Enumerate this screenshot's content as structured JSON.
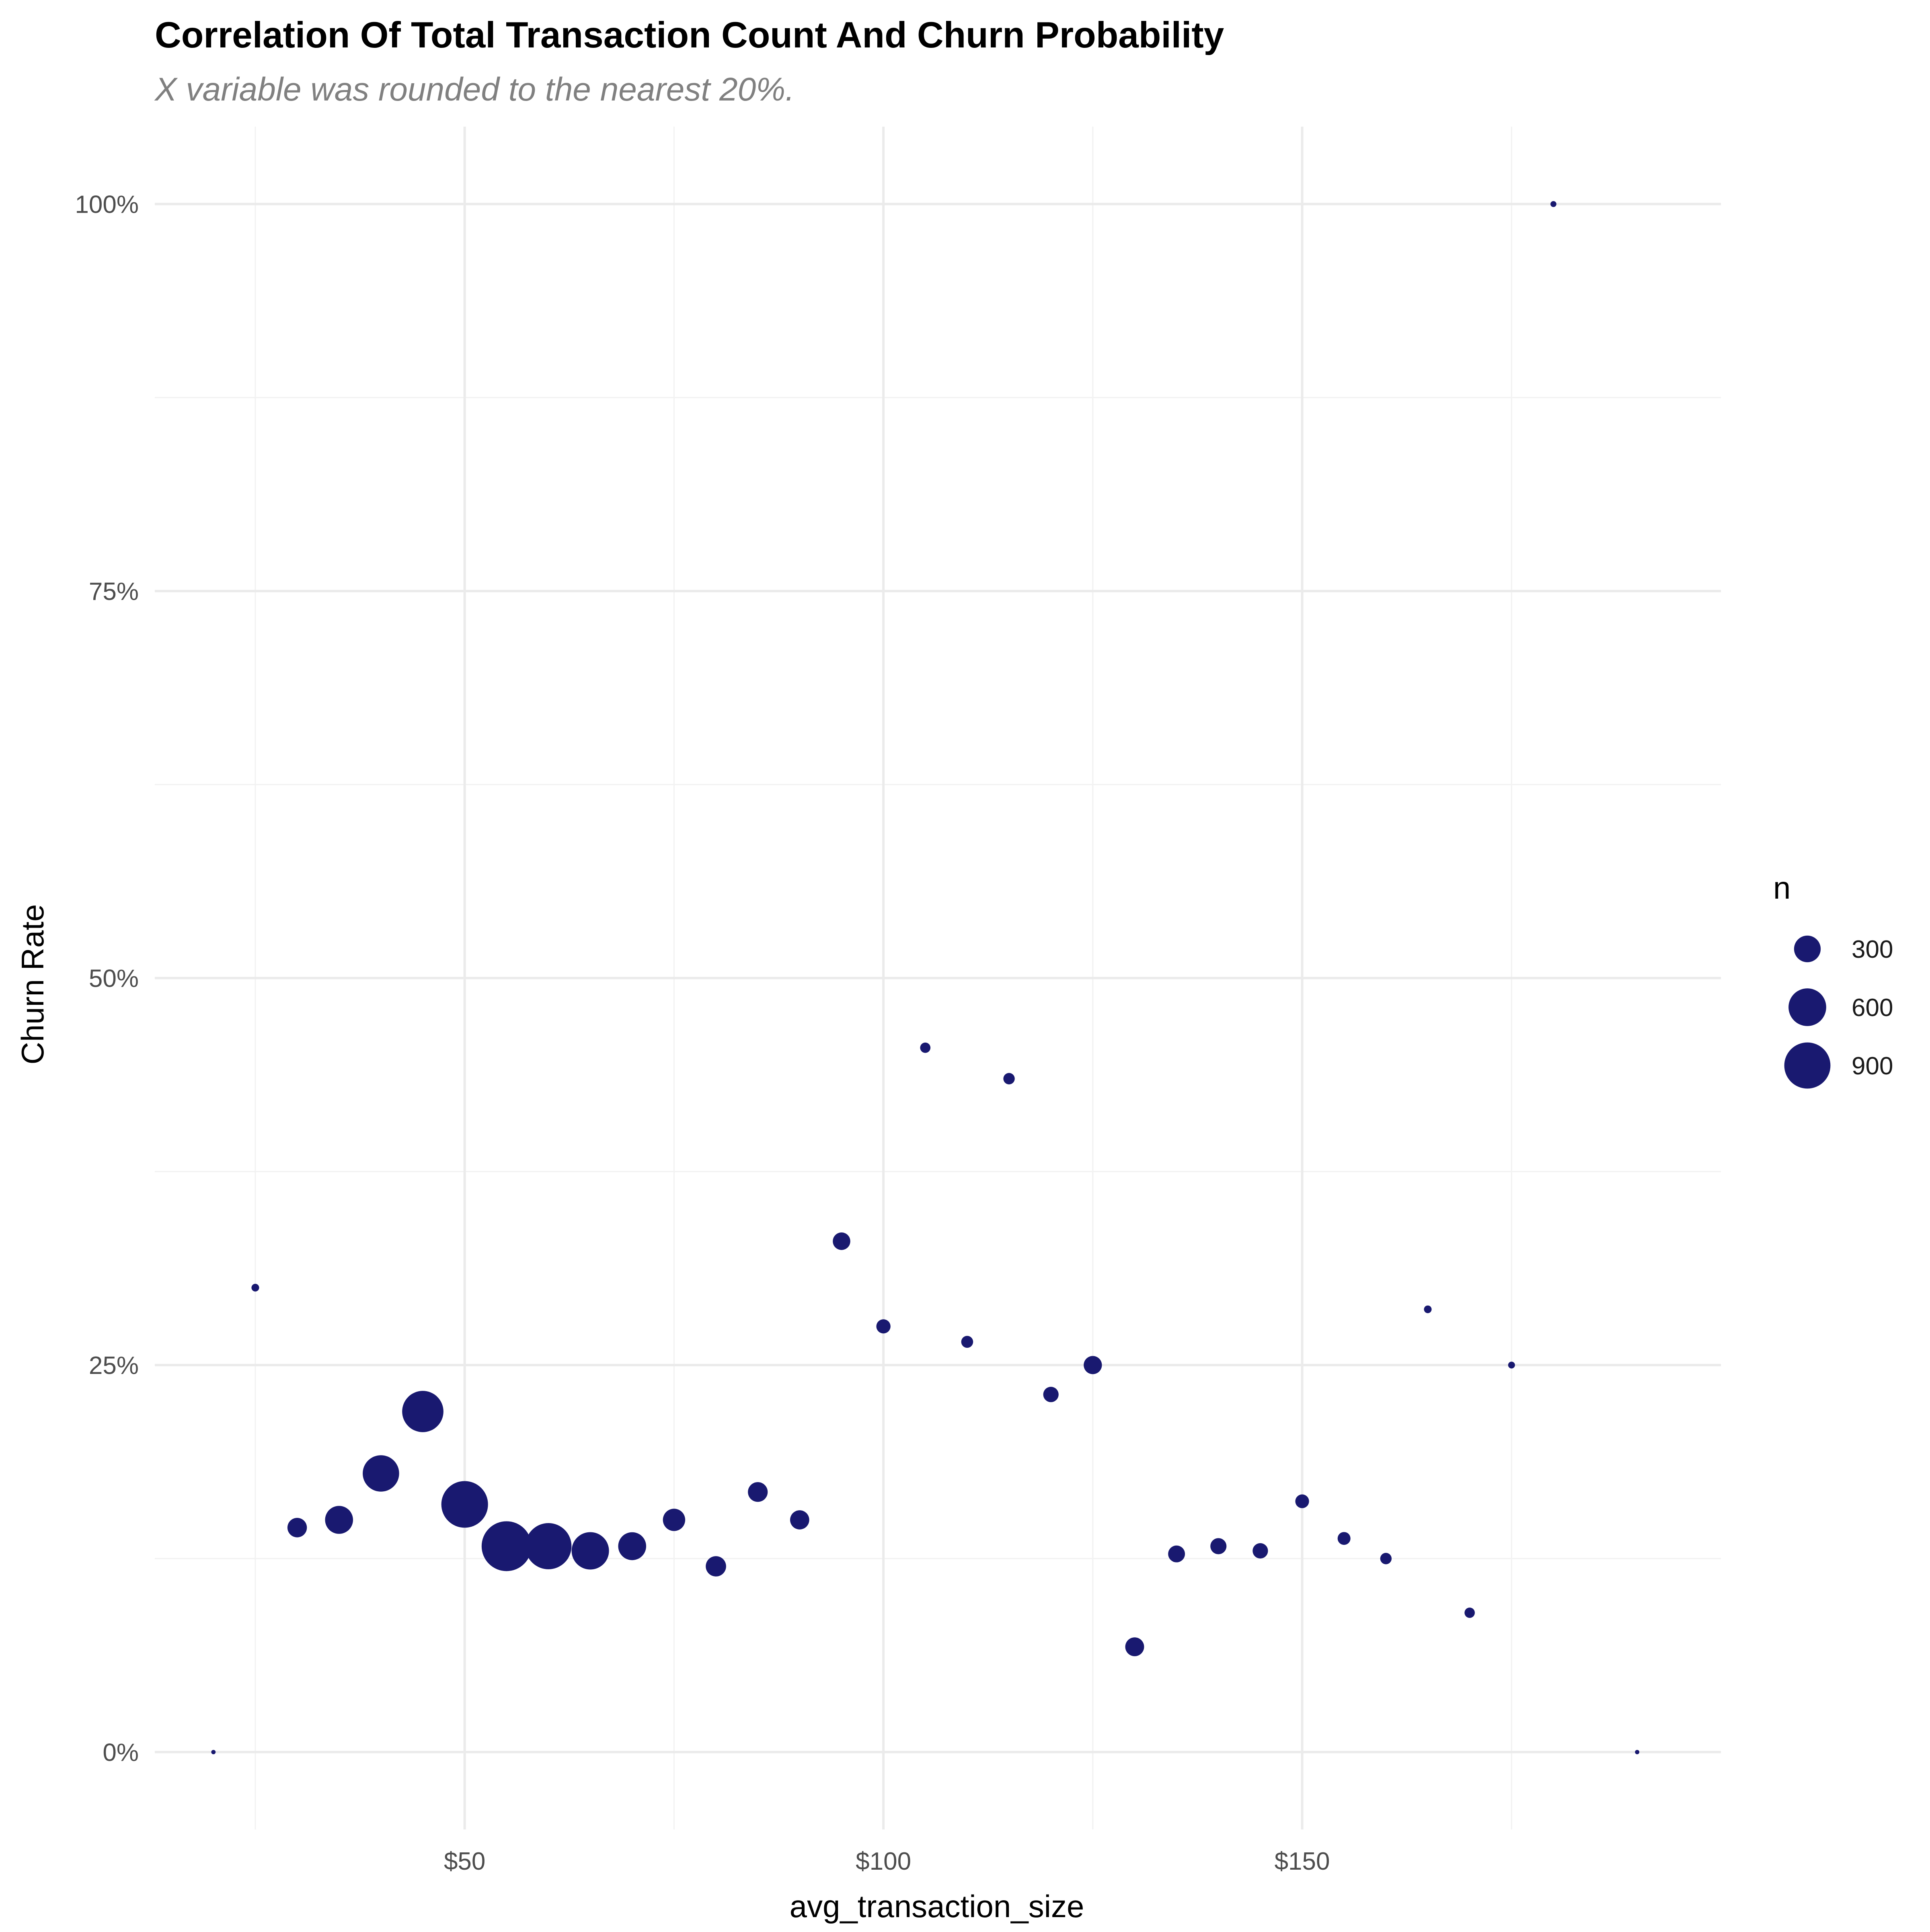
{
  "chart_data": {
    "type": "scatter",
    "title": "Correlation Of Total Transaction Count And Churn Probability",
    "subtitle": "X variable was rounded to the nearest 20%.",
    "xlabel": "avg_transaction_size",
    "ylabel": "Churn Rate",
    "xlim": [
      13,
      200
    ],
    "ylim": [
      -0.05,
      1.05
    ],
    "x_ticks": [
      50,
      100,
      150
    ],
    "x_tick_labels": [
      "$50",
      "$100",
      "$150"
    ],
    "y_ticks": [
      0,
      0.25,
      0.5,
      0.75,
      1.0
    ],
    "y_tick_labels": [
      "0%",
      "25%",
      "50%",
      "75%",
      "100%"
    ],
    "grid": true,
    "point_color": "#191970",
    "legend": {
      "title": "n",
      "placement": "right",
      "entries": [
        {
          "label": "300",
          "value": 300
        },
        {
          "label": "600",
          "value": 600
        },
        {
          "label": "900",
          "value": 900
        }
      ]
    },
    "points": [
      {
        "x": 20,
        "y": 0.0,
        "n": 8
      },
      {
        "x": 25,
        "y": 0.3,
        "n": 25
      },
      {
        "x": 30,
        "y": 0.145,
        "n": 160
      },
      {
        "x": 35,
        "y": 0.15,
        "n": 330
      },
      {
        "x": 40,
        "y": 0.18,
        "n": 560
      },
      {
        "x": 45,
        "y": 0.22,
        "n": 720
      },
      {
        "x": 50,
        "y": 0.16,
        "n": 920
      },
      {
        "x": 55,
        "y": 0.133,
        "n": 1050
      },
      {
        "x": 60,
        "y": 0.133,
        "n": 900
      },
      {
        "x": 65,
        "y": 0.13,
        "n": 590
      },
      {
        "x": 70,
        "y": 0.133,
        "n": 330
      },
      {
        "x": 75,
        "y": 0.15,
        "n": 210
      },
      {
        "x": 80,
        "y": 0.12,
        "n": 175
      },
      {
        "x": 85,
        "y": 0.168,
        "n": 165
      },
      {
        "x": 90,
        "y": 0.15,
        "n": 155
      },
      {
        "x": 95,
        "y": 0.33,
        "n": 130
      },
      {
        "x": 100,
        "y": 0.275,
        "n": 85
      },
      {
        "x": 105,
        "y": 0.455,
        "n": 45
      },
      {
        "x": 110,
        "y": 0.265,
        "n": 60
      },
      {
        "x": 115,
        "y": 0.435,
        "n": 55
      },
      {
        "x": 120,
        "y": 0.231,
        "n": 100
      },
      {
        "x": 125,
        "y": 0.25,
        "n": 140
      },
      {
        "x": 130,
        "y": 0.068,
        "n": 150
      },
      {
        "x": 135,
        "y": 0.128,
        "n": 120
      },
      {
        "x": 140,
        "y": 0.133,
        "n": 110
      },
      {
        "x": 145,
        "y": 0.13,
        "n": 100
      },
      {
        "x": 150,
        "y": 0.162,
        "n": 80
      },
      {
        "x": 155,
        "y": 0.138,
        "n": 70
      },
      {
        "x": 160,
        "y": 0.125,
        "n": 55
      },
      {
        "x": 165,
        "y": 0.286,
        "n": 25
      },
      {
        "x": 170,
        "y": 0.09,
        "n": 45
      },
      {
        "x": 175,
        "y": 0.25,
        "n": 20
      },
      {
        "x": 180,
        "y": 1.0,
        "n": 15
      },
      {
        "x": 190,
        "y": 0.0,
        "n": 8
      }
    ]
  }
}
